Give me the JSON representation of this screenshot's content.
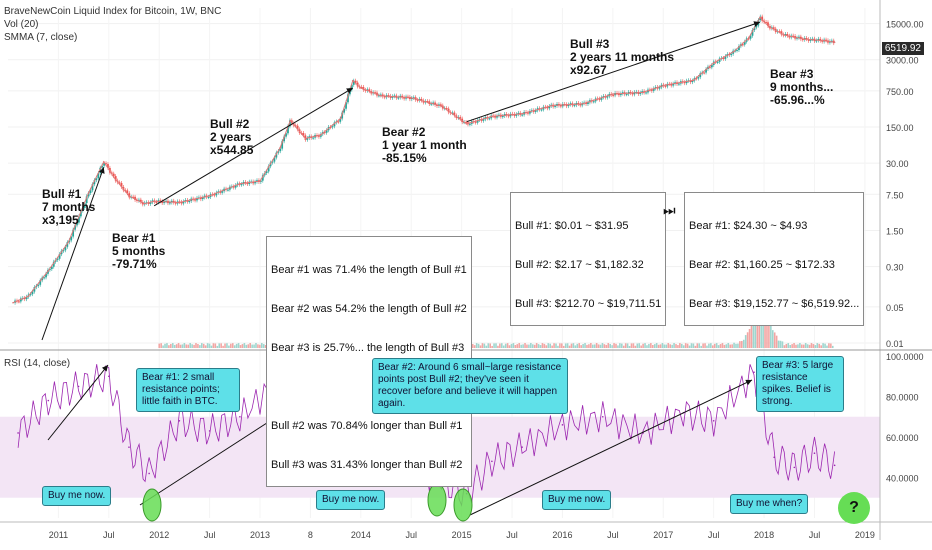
{
  "header": {
    "title": "BraveNewCoin Liquid Index for Bitcoin, 1W, BNC",
    "vol": "Vol (20)",
    "smma": "SMMA (7, close)",
    "rsi": "RSI (14, close)"
  },
  "price_tag": "6519.92",
  "stats_bull": [
    "Bull #1: $0.01 ~ $31.95",
    "Bull #2: $2.17 ~ $1,182.32",
    "Bull #3: $212.70 ~ $19,711.51"
  ],
  "stats_bear": [
    "Bear #1: $24.30 ~ $4.93",
    "Bear #2: $1,160.25 ~ $172.33",
    "Bear #3: $19,152.77 ~ $6,519.92..."
  ],
  "play_glyph": "⏭",
  "ratios": [
    "Bear #1 was 71.4% the length of Bull #1",
    "Bear #2 was 54.2% the length of Bull #2",
    "Bear #3 is 25.7%... the length of Bull #3",
    "",
    "Bull #2 was 70.84% longer than Bull #1",
    "Bull #3 was 31.43% longer than Bull #2"
  ],
  "annotations": {
    "bull1": "Bull #1\n7 months\nx3,195",
    "bear1": "Bear #1\n5 months\n-79.71%",
    "bull2": "Bull #2\n2 years\nx544.85",
    "bear2": "Bear #2\n1 year 1 month\n-85.15%",
    "bull3": "Bull #3\n2 years 11 months\nx92.67",
    "bear3": "Bear #3\n9 months...\n-65.96...%"
  },
  "callouts": {
    "bear1": "Bear #1: 2 small resistance points; little faith in BTC.",
    "bear2": "Bear #2: Around 6 small~large resistance points post Bull #2; they've seen it recover before and believe it will happen again.",
    "bear3": "Bear #3: 5 large resistance spikes. Belief is strong.",
    "buy1": "Buy me now.",
    "buy2": "Buy me now.",
    "buy3": "Buy me now.",
    "buy4": "Buy me when?",
    "question": "?"
  },
  "colors": {
    "up": "#26a69a",
    "down": "#ef5350",
    "smma": "#e07878",
    "rsi": "#9c27b0",
    "rsi_band": "#f3e5f5",
    "callout": "#5ee0e8",
    "green_oval": "#66dd55"
  },
  "chart_data": {
    "type": "line",
    "title": "BraveNewCoin Liquid Index for Bitcoin, 1W, BNC",
    "y_scale": "log",
    "price_axis_ticks": [
      "15000.00",
      "3000.00",
      "750.00",
      "150.00",
      "30.00",
      "7.50",
      "1.50",
      "0.30",
      "0.05",
      "0.01"
    ],
    "rsi_axis_ticks": [
      "100.0000",
      "80.0000",
      "60.0000",
      "40.0000"
    ],
    "x_ticks": [
      "2011",
      "Jul",
      "2012",
      "Jul",
      "2013",
      "8",
      "2014",
      "Jul",
      "2015",
      "Jul",
      "2016",
      "Jul",
      "2017",
      "Jul",
      "2018",
      "Jul",
      "2019"
    ],
    "price_series": {
      "x": [
        2010.55,
        2010.7,
        2010.9,
        2011.1,
        2011.3,
        2011.45,
        2011.55,
        2011.7,
        2011.85,
        2011.95,
        2012.2,
        2012.5,
        2012.8,
        2013.0,
        2013.2,
        2013.3,
        2013.45,
        2013.6,
        2013.8,
        2013.92,
        2014.0,
        2014.2,
        2014.5,
        2014.8,
        2015.05,
        2015.3,
        2015.6,
        2015.9,
        2016.2,
        2016.5,
        2016.8,
        2017.0,
        2017.3,
        2017.5,
        2017.7,
        2017.85,
        2017.96,
        2018.05,
        2018.2,
        2018.4,
        2018.6,
        2018.7
      ],
      "y": [
        0.06,
        0.08,
        0.25,
        0.9,
        8,
        31.95,
        16,
        7,
        4.93,
        5.5,
        5.2,
        7,
        12,
        13.5,
        60,
        200,
        90,
        105,
        220,
        1182,
        850,
        600,
        550,
        380,
        172,
        240,
        270,
        390,
        420,
        650,
        700,
        950,
        1200,
        2600,
        4300,
        8000,
        19711,
        13000,
        9000,
        7500,
        7000,
        6519.92
      ]
    },
    "rsi_series": {
      "x": [
        2010.6,
        2010.9,
        2011.2,
        2011.5,
        2011.7,
        2011.9,
        2012.2,
        2012.5,
        2012.8,
        2013.2,
        2013.5,
        2013.9,
        2014.1,
        2014.4,
        2014.8,
        2015.05,
        2015.3,
        2015.6,
        2016.0,
        2016.4,
        2016.8,
        2017.2,
        2017.5,
        2017.9,
        2018.1,
        2018.3,
        2018.5,
        2018.7
      ],
      "y": [
        62,
        78,
        85,
        90,
        55,
        42,
        68,
        63,
        70,
        88,
        60,
        95,
        55,
        48,
        38,
        32,
        48,
        55,
        66,
        70,
        62,
        72,
        68,
        92,
        50,
        45,
        52,
        46
      ]
    },
    "rsi_band": [
      30,
      70
    ],
    "volume_spike": {
      "x": 2017.97,
      "relative": 1.0
    }
  }
}
